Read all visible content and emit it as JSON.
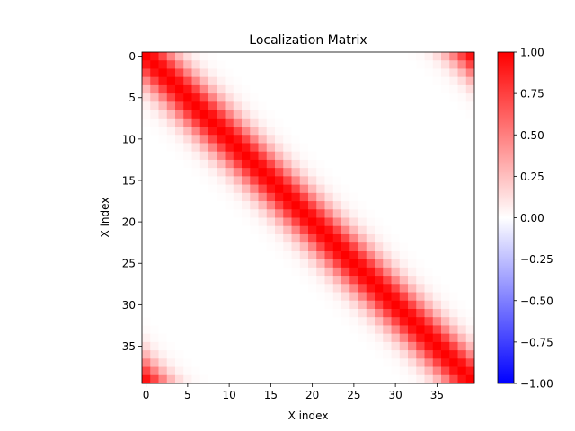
{
  "chart_data": {
    "type": "heatmap",
    "title": "Localization Matrix",
    "xlabel": "X index",
    "ylabel": "X index",
    "n": 40,
    "generator": {
      "kind": "periodic-gaussian",
      "periodic": true,
      "length_scale": 2.5,
      "peak": 1.0
    },
    "x_ticks": [
      0,
      5,
      10,
      15,
      20,
      25,
      30,
      35
    ],
    "y_ticks": [
      0,
      5,
      10,
      15,
      20,
      25,
      30,
      35
    ],
    "y_inverted": true,
    "grid": false,
    "colorbar": {
      "colormap": "bwr",
      "min": -1.0,
      "max": 1.0,
      "ticks": [
        -1.0,
        -0.75,
        -0.5,
        -0.25,
        0.0,
        0.25,
        0.5,
        0.75,
        1.0
      ],
      "tick_labels": [
        "−1.00",
        "−0.75",
        "−0.50",
        "−0.25",
        "0.00",
        "0.25",
        "0.50",
        "0.75",
        "1.00"
      ]
    }
  }
}
